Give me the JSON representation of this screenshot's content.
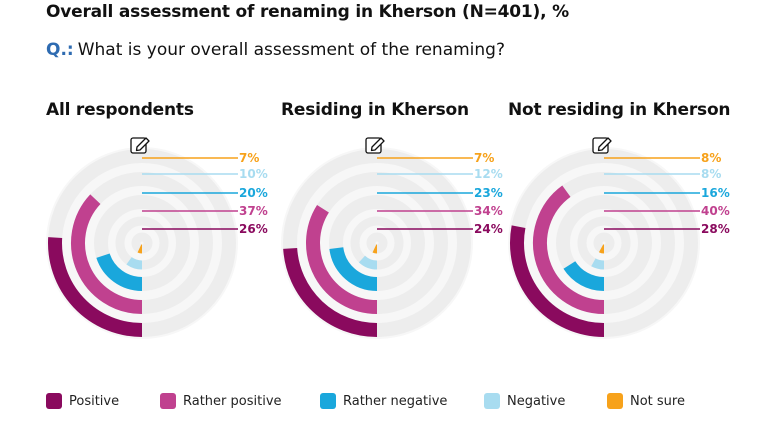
{
  "header": {
    "title": "Overall assessment of renaming in Kherson (N=401), %",
    "question_label": "Q.:",
    "question_text": "What is your overall assessment of the renaming?"
  },
  "colors": {
    "track": "#ededed",
    "Positive": "#8a0a5e",
    "Rather positive": "#c0418f",
    "Rather negative": "#1aa7dc",
    "Negative": "#a8dcf0",
    "Not sure": "#f7a21b"
  },
  "icon": "edit-icon",
  "chart_data": [
    {
      "type": "radial-bar",
      "title": "All respondents",
      "categories": [
        "Not sure",
        "Negative",
        "Rather negative",
        "Rather positive",
        "Positive"
      ],
      "values": [
        7,
        10,
        20,
        37,
        26
      ],
      "labels": [
        "7%",
        "10%",
        "20%",
        "37%",
        "26%"
      ]
    },
    {
      "type": "radial-bar",
      "title": "Residing in Kherson",
      "categories": [
        "Not sure",
        "Negative",
        "Rather negative",
        "Rather positive",
        "Positive"
      ],
      "values": [
        7,
        12,
        23,
        34,
        24
      ],
      "labels": [
        "7%",
        "12%",
        "23%",
        "34%",
        "24%"
      ]
    },
    {
      "type": "radial-bar",
      "title": "Not residing in Kherson",
      "categories": [
        "Not sure",
        "Negative",
        "Rather negative",
        "Rather positive",
        "Positive"
      ],
      "values": [
        8,
        8,
        16,
        40,
        28
      ],
      "labels": [
        "8%",
        "8%",
        "16%",
        "40%",
        "28%"
      ]
    }
  ],
  "legend": [
    "Positive",
    "Rather positive",
    "Rather negative",
    "Negative",
    "Not sure"
  ]
}
